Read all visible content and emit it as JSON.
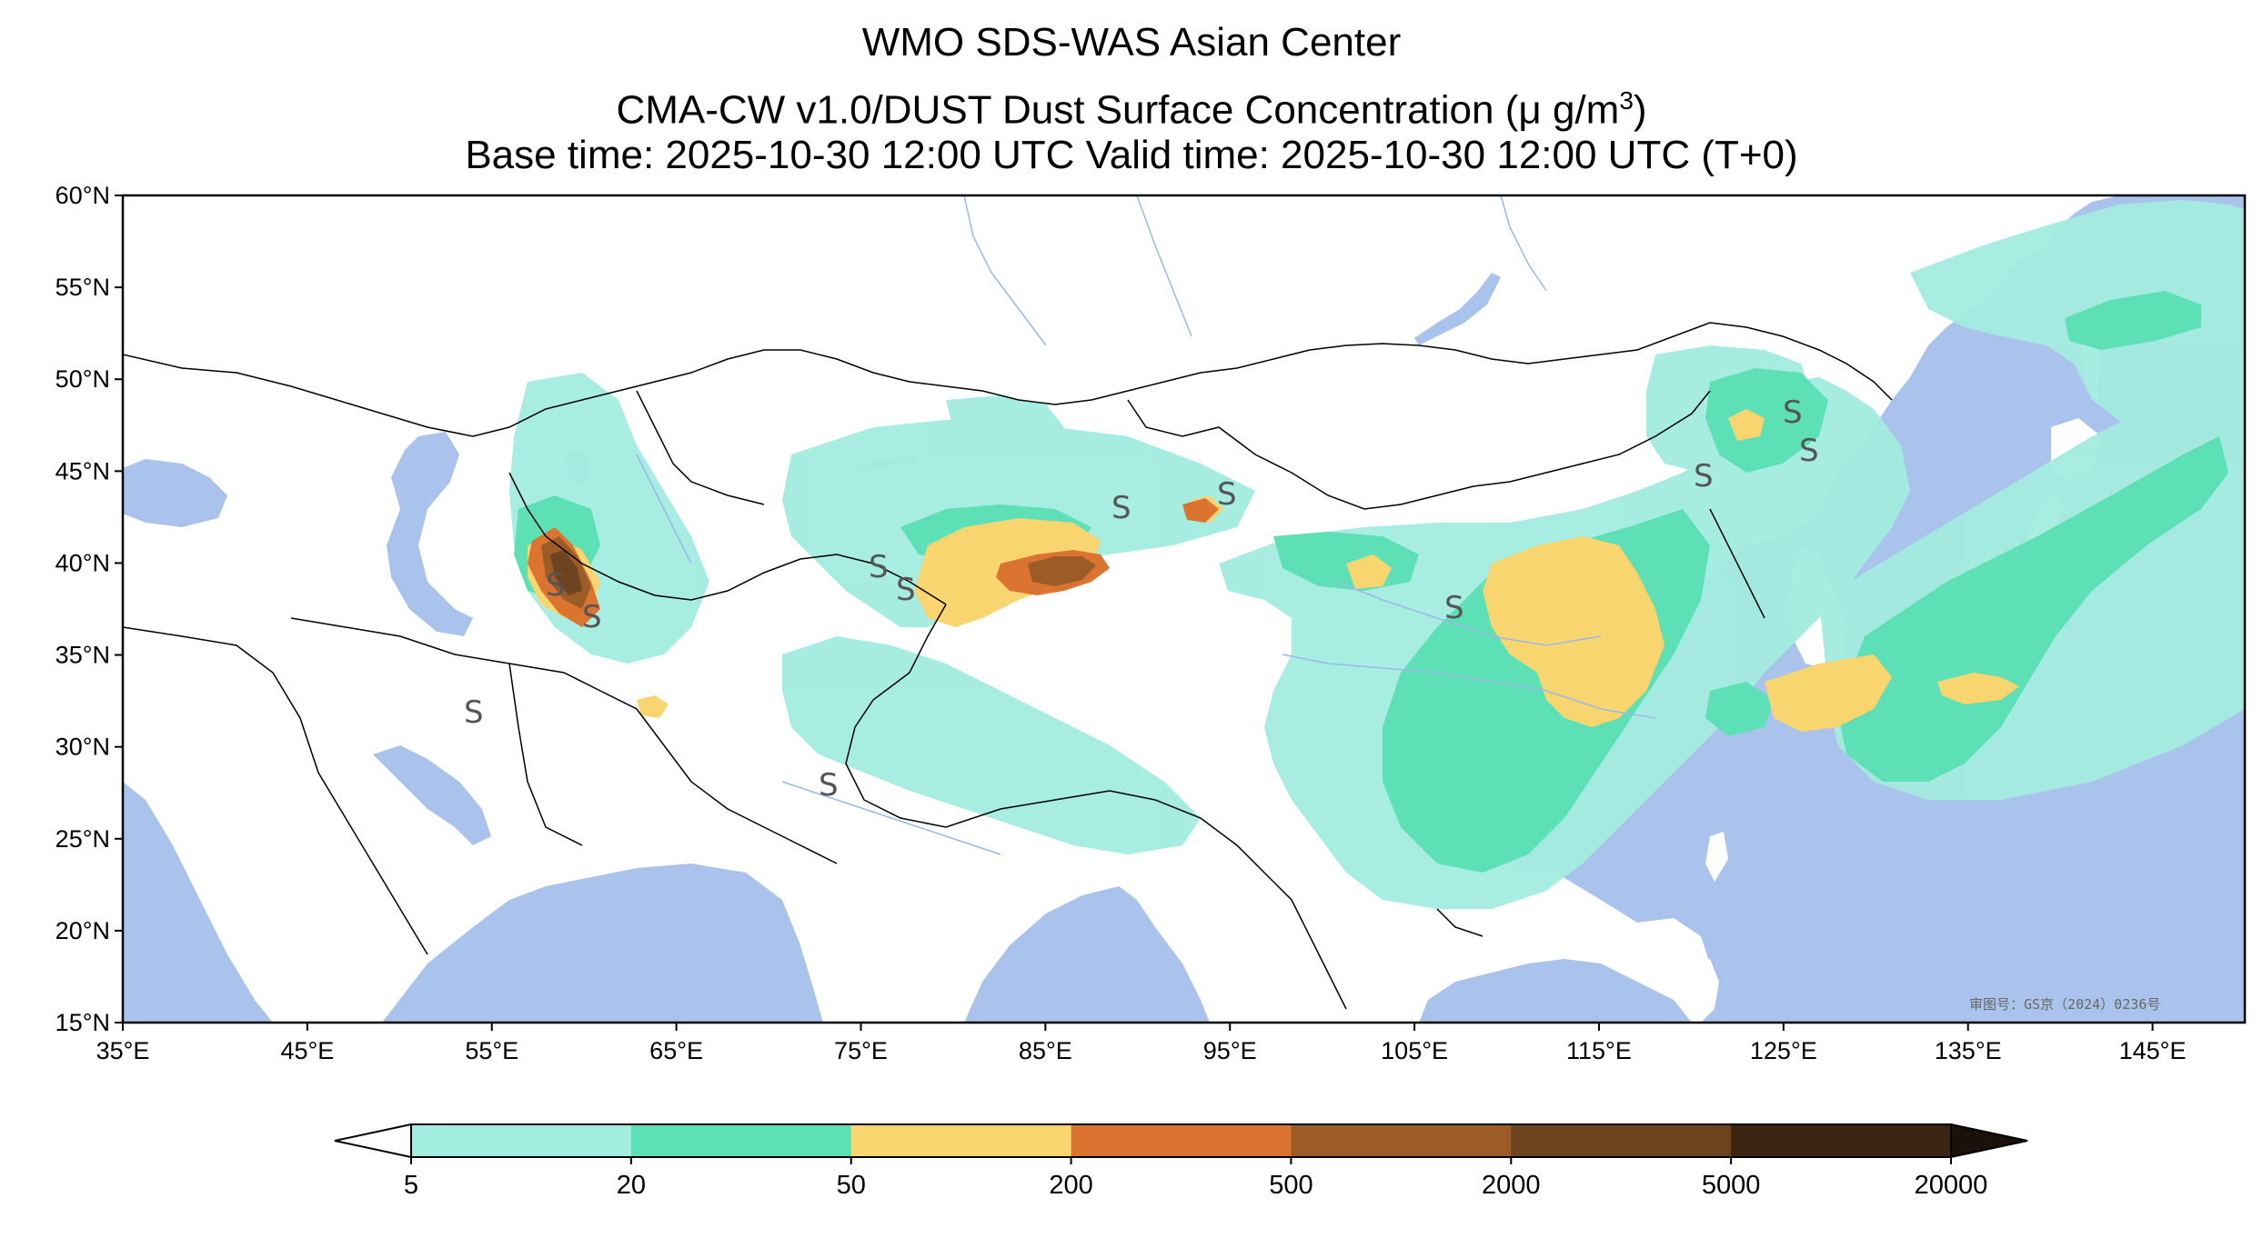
{
  "title": {
    "line1": "WMO SDS-WAS Asian Center",
    "line2_prefix": "CMA-CW v1.0/DUST Dust Surface Concentration (",
    "line2_unit_main": "μ g/m",
    "line2_unit_sup": "3",
    "line2_suffix": ")",
    "line3": "Base time: 2025-10-30 12:00 UTC Valid time: 2025-10-30 12:00 UTC (T+0)"
  },
  "map": {
    "lat_ticks": [
      "60°N",
      "55°N",
      "50°N",
      "45°N",
      "40°N",
      "35°N",
      "30°N",
      "25°N",
      "20°N",
      "15°N"
    ],
    "lon_ticks": [
      "35°E",
      "45°E",
      "55°E",
      "65°E",
      "75°E",
      "85°E",
      "95°E",
      "105°E",
      "115°E",
      "125°E",
      "135°E",
      "145°E"
    ],
    "extent": {
      "lon": [
        35,
        150
      ],
      "lat": [
        15,
        60
      ]
    },
    "watermark": "审图号：GS京（2024）0236号",
    "dust_storm_symbol": "S",
    "colors": {
      "ocean": "#a9c3ec",
      "land": "#ffffff",
      "border": "#000000",
      "river": "#9bb8e8"
    }
  },
  "colorbar": {
    "labels": [
      "5",
      "20",
      "50",
      "200",
      "500",
      "2000",
      "5000",
      "20000"
    ],
    "colors": [
      "#a3ece0",
      "#5de0b5",
      "#f8d56e",
      "#db7431",
      "#9c5c27",
      "#6e4420",
      "#3b2412"
    ],
    "under_color": "#ffffff",
    "over_color": "#1c110a"
  }
}
